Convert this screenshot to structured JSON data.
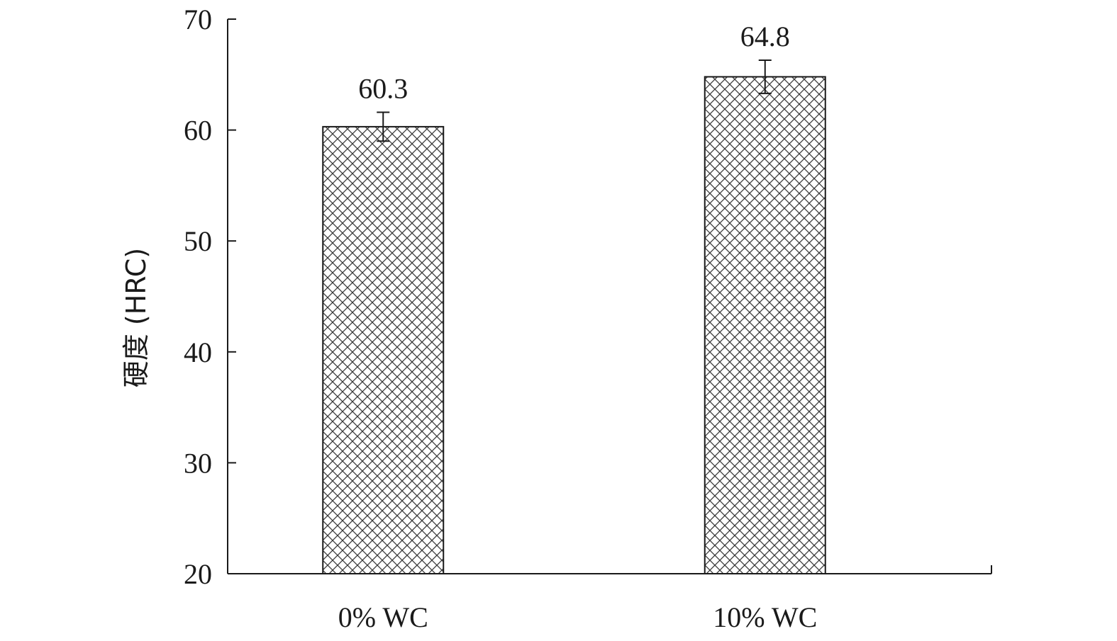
{
  "chart_data": {
    "type": "bar",
    "title": "",
    "xlabel": "",
    "ylabel": "硬度 (HRC)",
    "ylim": [
      20,
      70
    ],
    "yticks": [
      20,
      30,
      40,
      50,
      60,
      70
    ],
    "categories": [
      "0% WC",
      "10% WC"
    ],
    "values": [
      60.3,
      64.8
    ],
    "errors": [
      1.3,
      1.5
    ],
    "value_labels": [
      "60.3",
      "64.8"
    ],
    "bar_fill": "cross-hatch",
    "colors": {
      "axis": "#1a1a1a",
      "hatch": "#3a3a3a",
      "background": "#ffffff"
    },
    "grid": false,
    "legend": "none"
  }
}
